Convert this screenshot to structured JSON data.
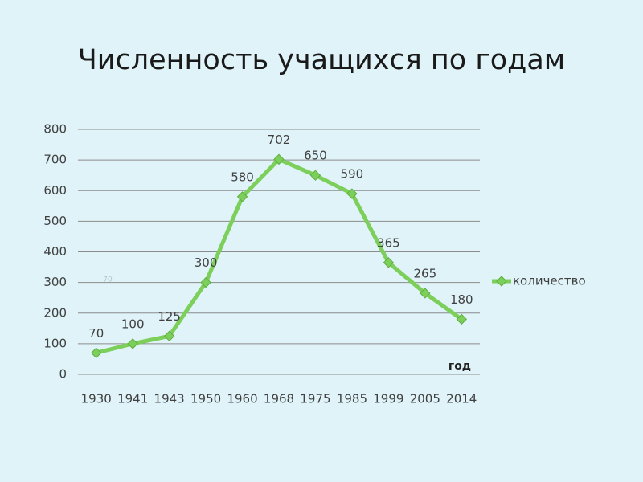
{
  "chart_data": {
    "type": "line",
    "title": "Численность учащихся по годам",
    "x_label": "год",
    "annotation": "70",
    "categories": [
      "1930",
      "1941",
      "1943",
      "1950",
      "1960",
      "1968",
      "1975",
      "1985",
      "1999",
      "2005",
      "2014"
    ],
    "series": [
      {
        "name": "количество",
        "color": "#7ccf5a",
        "values": [
          70,
          100,
          125,
          300,
          580,
          702,
          650,
          590,
          365,
          265,
          180
        ]
      }
    ],
    "ylim": [
      0,
      800
    ],
    "yticks": [
      0,
      100,
      200,
      300,
      400,
      500,
      600,
      700,
      800
    ],
    "grid": true,
    "legend": "right",
    "data_labels": true
  }
}
